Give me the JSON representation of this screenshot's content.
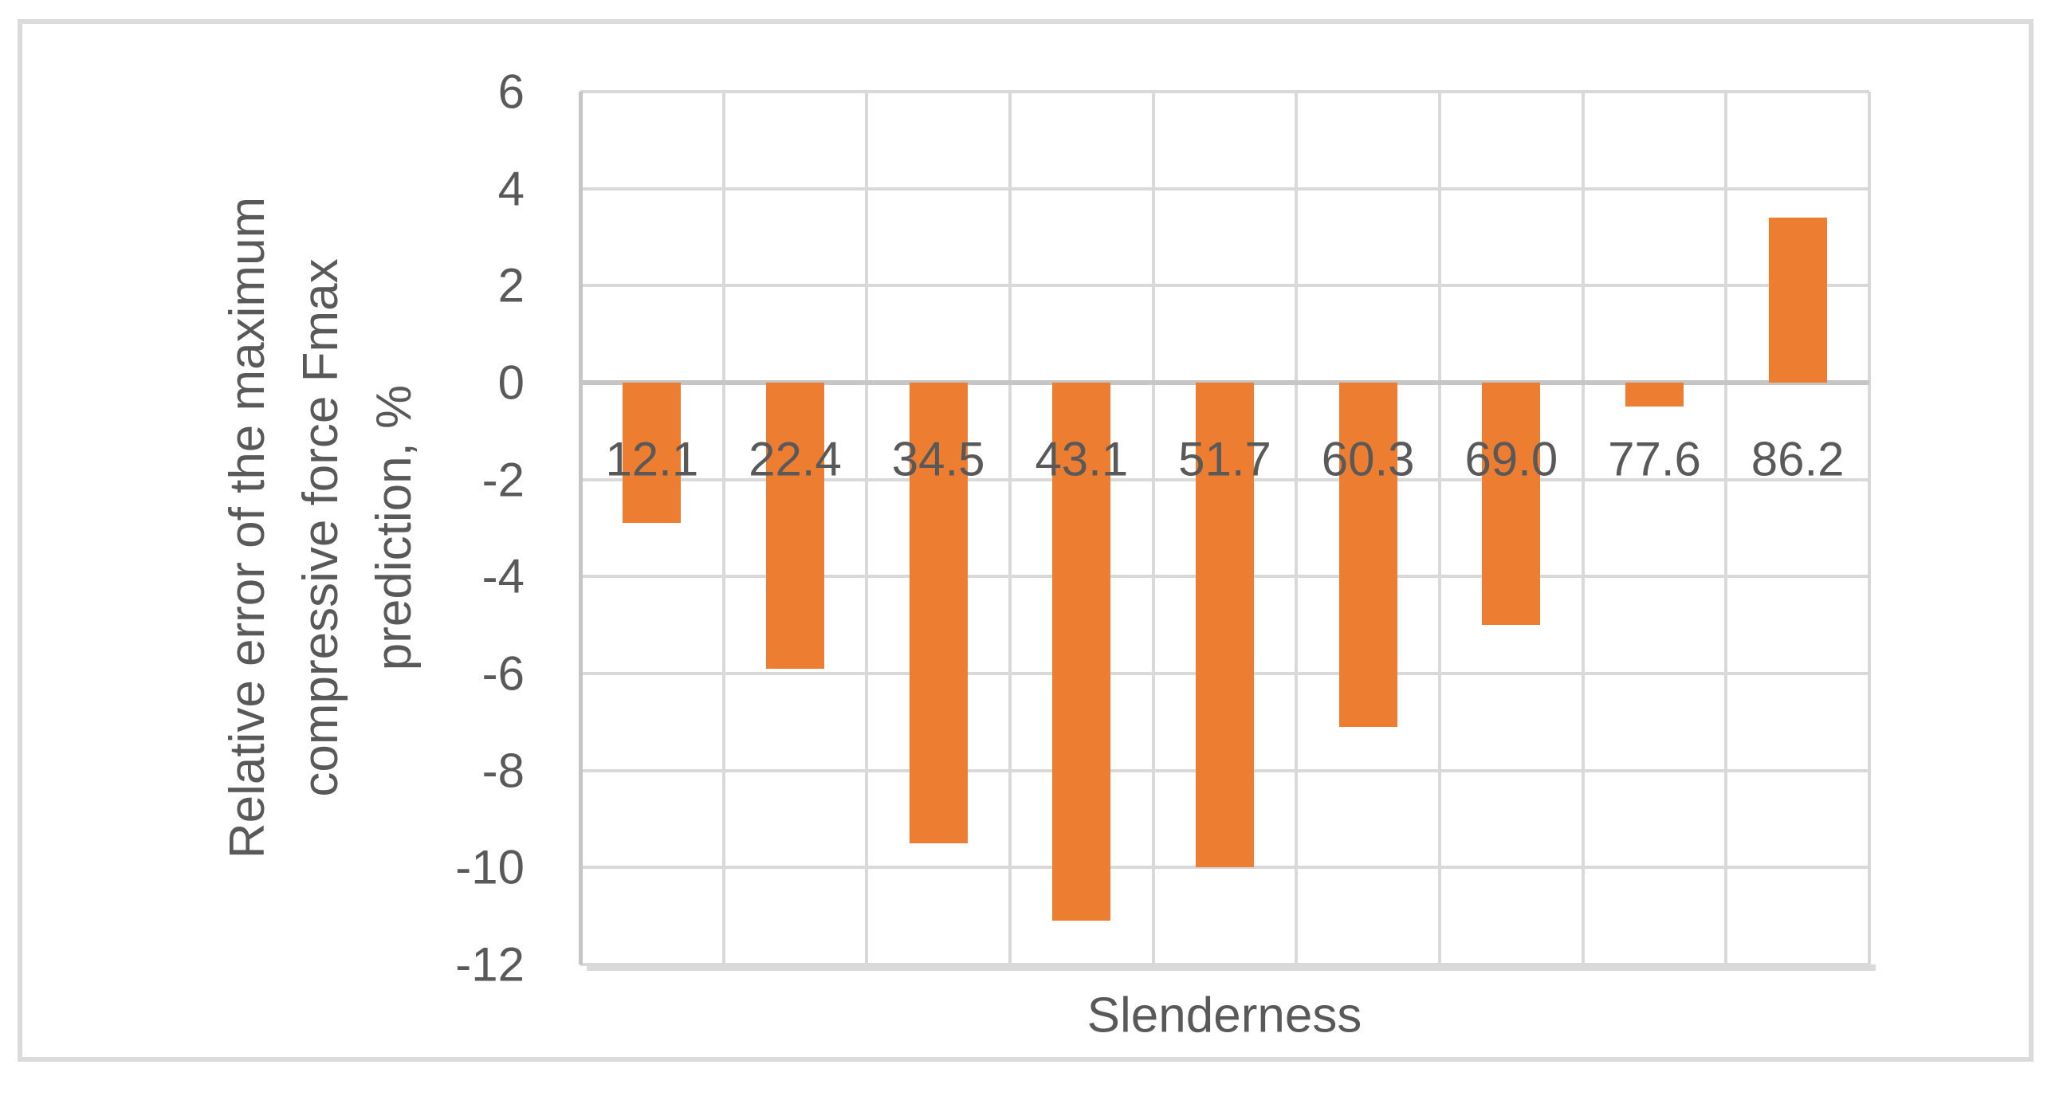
{
  "figure": {
    "background": "#FFFFFF",
    "border_color": "#DBDBDB"
  },
  "chart_data": {
    "type": "bar",
    "title": "",
    "categories": [
      "12.1",
      "22.4",
      "34.5",
      "43.1",
      "51.7",
      "60.3",
      "69.0",
      "77.6",
      "86.2"
    ],
    "values": [
      -2.9,
      -5.9,
      -9.5,
      -11.1,
      -10.0,
      -7.1,
      -5.0,
      -0.5,
      3.4
    ],
    "xlabel": "Slenderness",
    "ylabel": "Relative error of the maximum compressive force Fmax prediction, %",
    "ylabel_lines": [
      "Relative error of the maximum",
      "compressive force Fmax",
      "prediction, %"
    ],
    "ylim": [
      -12,
      6
    ],
    "yticks": [
      6,
      4,
      2,
      0,
      -2,
      -4,
      -6,
      -8,
      -10,
      -12
    ],
    "ytick_step": 2,
    "grid": "both",
    "legend": "none",
    "bar_color": "#ED7D31",
    "gridline_color": "#D9D9D9",
    "axis_line_color": "#C6C6C6",
    "text_color": "#595959"
  }
}
